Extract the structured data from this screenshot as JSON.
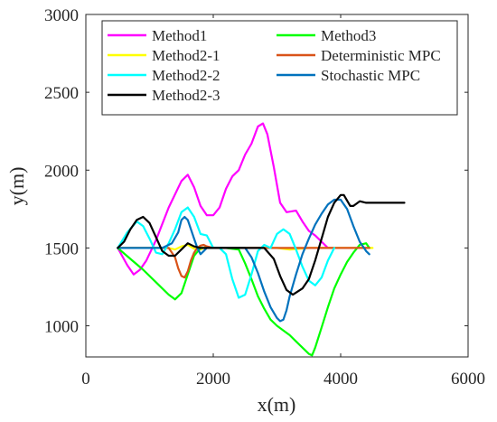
{
  "chart_data": {
    "type": "line",
    "title": "",
    "xlabel": "x(m)",
    "ylabel": "y(m)",
    "xlim": [
      0,
      6000
    ],
    "ylim": [
      800,
      3000
    ],
    "xticks": [
      0,
      2000,
      4000,
      6000
    ],
    "yticks": [
      1000,
      1500,
      2000,
      2500,
      3000
    ],
    "xtick_labels": [
      "0",
      "2000",
      "4000",
      "6000"
    ],
    "ytick_labels": [
      "1000",
      "1500",
      "2000",
      "2500",
      "3000"
    ],
    "grid": false,
    "legend_position": "top",
    "legend_columns": 2,
    "series": [
      {
        "name": "Method1",
        "color": "#ff00ff",
        "x": [
          500,
          650,
          750,
          850,
          950,
          1100,
          1300,
          1500,
          1600,
          1700,
          1800,
          1900,
          2000,
          2100,
          2200,
          2300,
          2400,
          2500,
          2600,
          2700,
          2780,
          2850,
          2950,
          3050,
          3150,
          3300,
          3400,
          3500,
          3600,
          3700,
          3800,
          3900
        ],
        "y": [
          1500,
          1390,
          1330,
          1360,
          1420,
          1550,
          1760,
          1930,
          1970,
          1890,
          1770,
          1710,
          1710,
          1760,
          1880,
          1960,
          2000,
          2100,
          2170,
          2280,
          2300,
          2230,
          2020,
          1790,
          1730,
          1740,
          1670,
          1610,
          1580,
          1540,
          1500,
          1500
        ]
      },
      {
        "name": "Method2-1",
        "color": "#ffff00",
        "x": [
          500,
          1000,
          1300,
          1400,
          1500,
          1600,
          1700,
          1800,
          1900,
          2000,
          2300,
          2600,
          3000,
          3200,
          3500,
          4000,
          4500
        ],
        "y": [
          1500,
          1500,
          1500,
          1490,
          1510,
          1520,
          1495,
          1490,
          1510,
          1500,
          1500,
          1500,
          1500,
          1490,
          1500,
          1500,
          1500
        ]
      },
      {
        "name": "Method2-2",
        "color": "#00ffff",
        "x": [
          500,
          650,
          800,
          900,
          1000,
          1100,
          1200,
          1300,
          1400,
          1500,
          1600,
          1700,
          1800,
          1900,
          2000,
          2100,
          2200,
          2300,
          2400,
          2500,
          2600,
          2700,
          2800,
          2900,
          3000,
          3100,
          3200,
          3300,
          3400,
          3500,
          3600,
          3700,
          3800,
          3900
        ],
        "y": [
          1500,
          1600,
          1670,
          1640,
          1560,
          1470,
          1460,
          1530,
          1620,
          1730,
          1760,
          1700,
          1590,
          1580,
          1500,
          1500,
          1460,
          1300,
          1180,
          1200,
          1330,
          1480,
          1520,
          1500,
          1590,
          1620,
          1590,
          1490,
          1380,
          1290,
          1260,
          1310,
          1420,
          1500
        ]
      },
      {
        "name": "Method2-3",
        "color": "#000000",
        "x": [
          500,
          600,
          700,
          800,
          900,
          1000,
          1100,
          1200,
          1300,
          1400,
          1500,
          1600,
          1700,
          1800,
          1900,
          2000,
          2200,
          2500,
          2800,
          2950,
          3050,
          3150,
          3250,
          3400,
          3500,
          3600,
          3700,
          3800,
          3900,
          4000,
          4050,
          4150,
          4200,
          4300,
          4400,
          4600,
          5000
        ],
        "y": [
          1500,
          1540,
          1620,
          1680,
          1700,
          1660,
          1570,
          1480,
          1450,
          1450,
          1490,
          1530,
          1510,
          1500,
          1500,
          1500,
          1500,
          1500,
          1500,
          1430,
          1320,
          1230,
          1200,
          1240,
          1300,
          1420,
          1560,
          1700,
          1790,
          1840,
          1840,
          1770,
          1770,
          1800,
          1790,
          1790,
          1790
        ]
      },
      {
        "name": "Method3",
        "color": "#00ff00",
        "x": [
          500,
          700,
          900,
          1100,
          1300,
          1400,
          1500,
          1600,
          1700,
          1800,
          1900,
          2000,
          2200,
          2400,
          2500,
          2600,
          2700,
          2800,
          2900,
          3000,
          3100,
          3200,
          3300,
          3400,
          3500,
          3550,
          3600,
          3700,
          3800,
          3900,
          4000,
          4100,
          4200,
          4300,
          4400,
          4450
        ],
        "y": [
          1500,
          1430,
          1360,
          1280,
          1200,
          1170,
          1210,
          1330,
          1450,
          1500,
          1500,
          1500,
          1500,
          1490,
          1400,
          1300,
          1190,
          1110,
          1040,
          1000,
          970,
          940,
          900,
          860,
          820,
          810,
          860,
          990,
          1120,
          1240,
          1330,
          1410,
          1470,
          1520,
          1530,
          1500
        ]
      },
      {
        "name": "Deterministic MPC",
        "color": "#d95319",
        "x": [
          500,
          1000,
          1300,
          1400,
          1450,
          1500,
          1550,
          1600,
          1650,
          1700,
          1750,
          1800,
          1850,
          1900,
          2000,
          2200,
          2500,
          2800,
          3000,
          3200,
          3500,
          3800,
          4100,
          4450
        ],
        "y": [
          1500,
          1500,
          1500,
          1440,
          1370,
          1320,
          1310,
          1350,
          1420,
          1470,
          1500,
          1515,
          1520,
          1510,
          1500,
          1500,
          1500,
          1500,
          1500,
          1500,
          1500,
          1500,
          1500,
          1500
        ]
      },
      {
        "name": "Stochastic MPC",
        "color": "#0072bd",
        "x": [
          500,
          1000,
          1200,
          1350,
          1450,
          1500,
          1550,
          1600,
          1700,
          1750,
          1800,
          1850,
          1900,
          2000,
          2200,
          2500,
          2600,
          2700,
          2800,
          2900,
          3000,
          3050,
          3100,
          3150,
          3200,
          3300,
          3400,
          3500,
          3600,
          3700,
          3800,
          3900,
          4000,
          4100,
          4200,
          4300,
          4400,
          4450
        ],
        "y": [
          1500,
          1500,
          1500,
          1530,
          1600,
          1680,
          1700,
          1680,
          1560,
          1500,
          1460,
          1480,
          1500,
          1500,
          1500,
          1500,
          1440,
          1340,
          1220,
          1120,
          1050,
          1030,
          1040,
          1100,
          1190,
          1330,
          1460,
          1560,
          1650,
          1720,
          1780,
          1810,
          1810,
          1750,
          1640,
          1540,
          1480,
          1460
        ]
      }
    ]
  }
}
